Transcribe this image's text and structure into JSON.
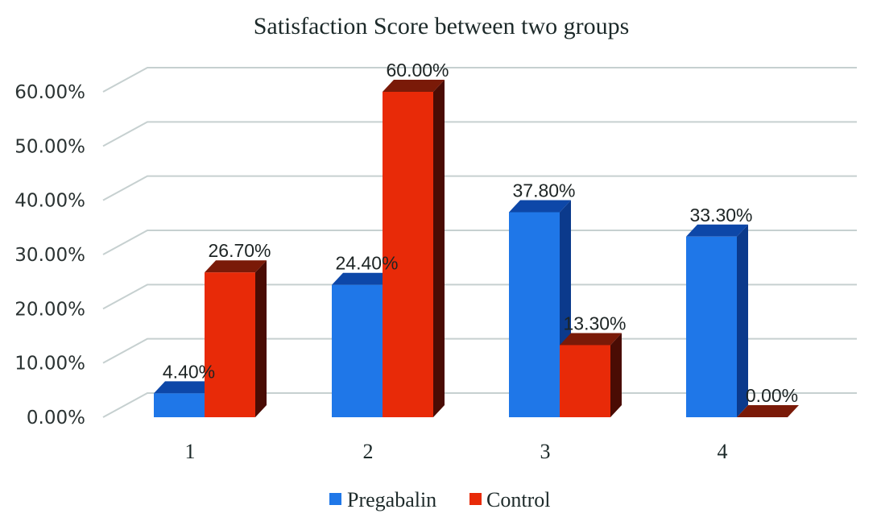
{
  "chart_data": {
    "type": "bar",
    "style": "3d-clustered-column",
    "title": "Satisfaction Score between two groups",
    "xlabel": "",
    "ylabel": "",
    "categories": [
      "1",
      "2",
      "3",
      "4"
    ],
    "series": [
      {
        "name": "Pregabalin",
        "values": [
          4.4,
          24.4,
          37.8,
          33.3
        ],
        "labels": [
          "4.40%",
          "24.40%",
          "37.80%",
          "33.30%"
        ],
        "color": "#1f77e8",
        "side_color": "#0b3a8c",
        "top_color": "#0d47a8"
      },
      {
        "name": "Control",
        "values": [
          26.7,
          60.0,
          13.3,
          0.0
        ],
        "labels": [
          "26.70%",
          "60.00%",
          "13.30%",
          "0.00%"
        ],
        "color": "#e82a08",
        "side_color": "#4a0c04",
        "top_color": "#7a1a08"
      }
    ],
    "ylim": [
      0,
      60
    ],
    "yticks": [
      "0.00%",
      "10.00%",
      "20.00%",
      "30.00%",
      "40.00%",
      "50.00%",
      "60.00%"
    ],
    "grid": true,
    "legend": "bottom-center",
    "data_labels": true
  }
}
